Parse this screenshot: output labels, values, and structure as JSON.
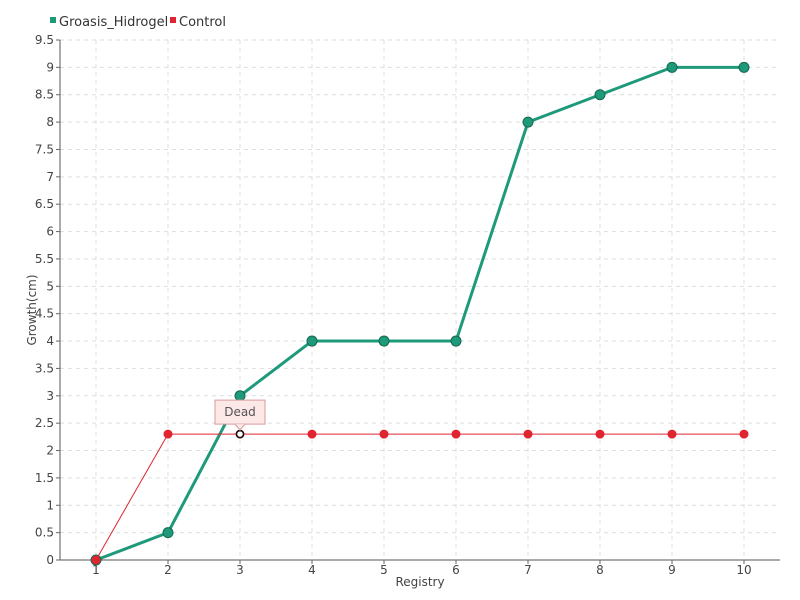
{
  "chart_data": {
    "type": "line",
    "title": "",
    "xlabel": "Registry",
    "ylabel": "Growth(cm)",
    "categories": [
      "1",
      "2",
      "3",
      "4",
      "5",
      "6",
      "7",
      "8",
      "9",
      "10"
    ],
    "ylim": [
      0,
      9.5
    ],
    "y_ticks": [
      "0",
      "0.5",
      "1",
      "1.5",
      "2",
      "2.5",
      "3",
      "3.5",
      "4",
      "4.5",
      "5",
      "5.5",
      "6",
      "6.5",
      "7",
      "7.5",
      "8",
      "8.5",
      "9",
      "9.5"
    ],
    "grid": true,
    "legend_position": "top-left",
    "series": [
      {
        "name": "Groasis_Hidrogel",
        "color": "#1e9a7a",
        "values": [
          0,
          0.5,
          3,
          4,
          4,
          4,
          8,
          8.5,
          9,
          9
        ]
      },
      {
        "name": "Control",
        "color": "#e02530",
        "values": [
          0,
          2.3,
          2.3,
          2.3,
          2.3,
          2.3,
          2.3,
          2.3,
          2.3,
          2.3
        ]
      }
    ],
    "annotation": {
      "series": "Control",
      "index": 2,
      "text": "Dead"
    }
  }
}
